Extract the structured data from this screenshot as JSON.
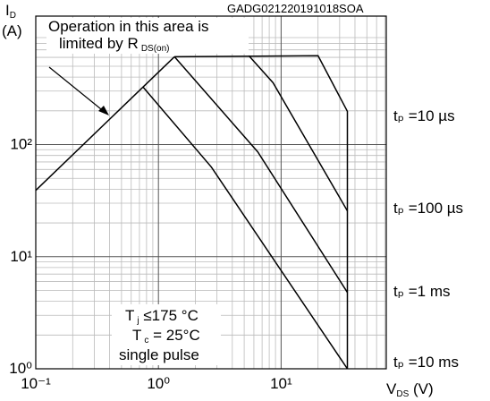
{
  "chart_data": {
    "type": "line",
    "log_x": true,
    "log_y": true,
    "grid": true,
    "minor_grid": true,
    "code": "GADG021220191018SOA",
    "x_label": {
      "base": "V",
      "sub": "DS",
      "rest": " (V)"
    },
    "y_label": {
      "base": "I",
      "sub": "D",
      "unit": "(A)"
    },
    "xlim": [
      0.1,
      72
    ],
    "ylim": [
      1,
      1400
    ],
    "xticks": [
      {
        "value": 0.1,
        "label": "10⁻¹"
      },
      {
        "value": 1,
        "label": "10⁰"
      },
      {
        "value": 10,
        "label": "10¹"
      }
    ],
    "yticks": [
      {
        "value": 1,
        "label": "10⁰"
      },
      {
        "value": 10,
        "label": "10¹"
      },
      {
        "value": 100,
        "label": "10²"
      }
    ],
    "color": "#000000",
    "series": [
      {
        "x": [
          0.1,
          1.35
        ],
        "values": [
          39,
          608
        ]
      },
      {
        "name": "tₚ =10 µs",
        "x": [
          1.35,
          20,
          34.7,
          34.7
        ],
        "values": [
          608,
          620,
          198,
          1
        ]
      },
      {
        "name": "tₚ =100 µs",
        "x": [
          5.46,
          8.6,
          34.7
        ],
        "values": [
          620,
          356,
          25.6
        ]
      },
      {
        "name": "tₚ =1 ms",
        "x": [
          1.35,
          6.46,
          34.7
        ],
        "values": [
          608,
          86,
          4.8
        ]
      },
      {
        "name": "tₚ =10 ms",
        "x": [
          0.75,
          2.7,
          34.7
        ],
        "values": [
          325,
          63,
          1
        ]
      }
    ],
    "annotations": {
      "area_line1": "Operation in this area is",
      "area_line2": {
        "base": "limited by R",
        "sub": "DS(on)"
      },
      "tj": {
        "base": "T",
        "sub": "j",
        "rest": " ≤175 °C"
      },
      "tc": {
        "base": "T",
        "sub": "c",
        "rest": " = 25°C"
      },
      "pulse": "single pulse"
    }
  }
}
